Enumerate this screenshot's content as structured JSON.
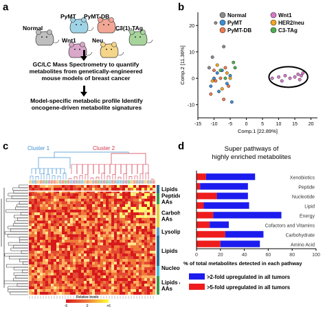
{
  "panel_a": {
    "letter": "a",
    "mice": [
      {
        "label": "PyMT",
        "color": "#9fd3e6"
      },
      {
        "label": "PyMT-DB",
        "color": "#f2a796"
      },
      {
        "label": "Normal",
        "color": "#bfbfbf"
      },
      {
        "label": "C3(1)-TAg",
        "color": "#a7d49b"
      },
      {
        "label": "Wnt1",
        "color": "#d9a7c9"
      },
      {
        "label": "Neu",
        "color": "#f4d58a"
      }
    ],
    "step1": "GC/LC Mass Spectrometry to quantify metabolites from genetically-engineered mouse models of breast cancer",
    "step2": "Model-specific metabolic profile Identify oncogene-driven metabolite signatures"
  },
  "panel_b": {
    "letter": "b",
    "chart_data": {
      "type": "scatter",
      "xlabel": "Comp.1 [22.89%]",
      "ylabel": "Comp.2 [11.36%]",
      "xlim": [
        -15,
        22
      ],
      "ylim": [
        -15,
        25
      ],
      "xticks": [
        "-15",
        "-10",
        "-5",
        "0",
        "5",
        "10",
        "15",
        "20"
      ],
      "yticks": [
        "-10",
        "0",
        "10",
        "20"
      ],
      "legend_position": "top-right",
      "series": [
        {
          "name": "Normal",
          "color": "#8c8c8c",
          "x": [
            -11.5,
            -10.5,
            -9.5,
            -7
          ],
          "y": [
            4,
            8,
            21,
            12
          ]
        },
        {
          "name": "PyMT",
          "color": "#3b8fd9",
          "x": [
            -11,
            -10,
            -9,
            -8.5,
            -7.5,
            -6,
            -5,
            -4.5
          ],
          "y": [
            -3,
            0,
            2,
            -5,
            3,
            -2,
            1,
            -9
          ]
        },
        {
          "name": "PyMT-DB",
          "color": "#f07a4f",
          "x": [
            -11,
            -10,
            -9.5,
            -8,
            -7,
            -6.5,
            -5.5
          ],
          "y": [
            -6,
            3,
            -1,
            0,
            -8,
            4,
            -3
          ]
        },
        {
          "name": "Wnt1",
          "color": "#d97ac9",
          "x": [
            8,
            10,
            11,
            12,
            13.5,
            15,
            16,
            16.5,
            17,
            17.5
          ],
          "y": [
            0,
            0.5,
            -1,
            1,
            0,
            0.5,
            1.5,
            -0.5,
            1,
            2
          ]
        },
        {
          "name": "HER2/neu",
          "color": "#f5a623",
          "x": [
            -10.5,
            -9,
            -7.5,
            -6,
            -5
          ],
          "y": [
            -1,
            5,
            -4,
            2,
            0
          ]
        },
        {
          "name": "C3-TAg",
          "color": "#4caf50",
          "x": [
            -8,
            -4,
            -6.5,
            -3.5
          ],
          "y": [
            3,
            6,
            0,
            4
          ]
        }
      ]
    }
  },
  "panel_c": {
    "letter": "c",
    "cluster1": "Cluster 1",
    "cluster2": "Cluster 2",
    "row_groups": [
      {
        "label": "Lipids",
        "color": "#2e6e8e"
      },
      {
        "label": "Peptides & AAs",
        "color": "#3a9a4a"
      },
      {
        "label": "Carbohydrates & AAs",
        "color": "#e0d23a"
      },
      {
        "label": "Lysolipids",
        "color": "#5aa0c8"
      },
      {
        "label": "Lipids",
        "color": "#2e6e8e"
      },
      {
        "label": "Nucleotides",
        "color": "#48c0d8"
      },
      {
        "label": "Lipids & AAs",
        "color": "#3a9a4a"
      }
    ],
    "scale_label": "Relative levels",
    "scale_min": "-6",
    "scale_mid": "0",
    "scale_max": "+6"
  },
  "panel_d": {
    "letter": "d",
    "chart_data": {
      "type": "bar",
      "orientation": "horizontal",
      "stacked": true,
      "title": "Super pathways of highly enriched metabolites",
      "xlabel": "% of total metabolites detected in each pathway",
      "xlim": [
        0,
        100
      ],
      "xticks": [
        "0",
        "20",
        "40",
        "60",
        "80",
        "100"
      ],
      "categories": [
        "Xenobiotics",
        "Peptide",
        "Nucleotide",
        "Lipid",
        "Energy",
        "Cofactors and Vitamins",
        "Carbohydrate",
        "Amino Acid"
      ],
      "series": [
        {
          "name": ">5-fold upregulated in all tumors",
          "color": "#ee1c1c",
          "values": [
            8,
            3,
            17,
            6,
            14,
            11,
            24,
            20
          ]
        },
        {
          "name": ">2-fold upregulated in all tumors",
          "color": "#1c1cee",
          "values": [
            41,
            40,
            26,
            38,
            57,
            16,
            32,
            33
          ]
        }
      ],
      "legend_position": "bottom"
    }
  }
}
